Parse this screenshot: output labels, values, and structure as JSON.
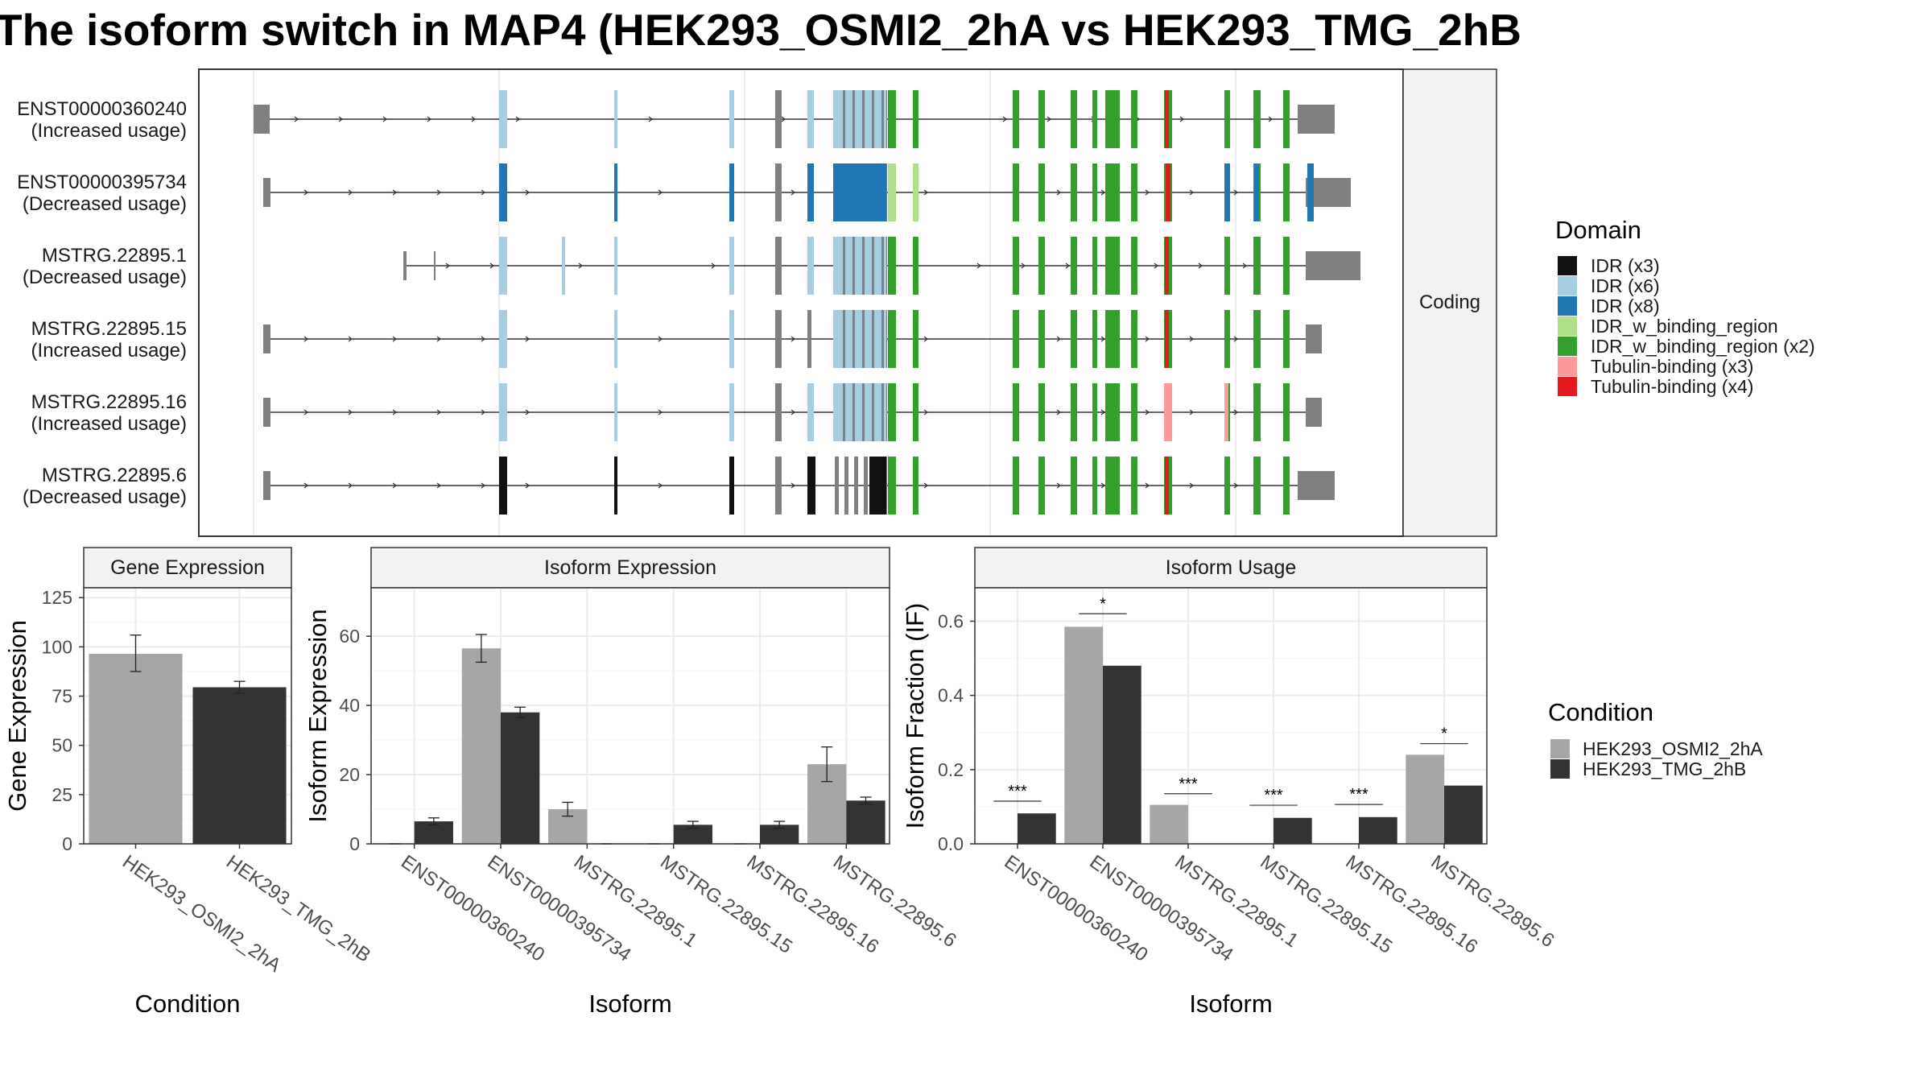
{
  "title": "The isoform switch in MAP4 (HEK293_OSMI2_2hA vs HEK293_TMG_2hB",
  "colors": {
    "cond1": "#a6a6a6",
    "cond2": "#333333",
    "intron": "#333333",
    "noncoding": "#808080",
    "facet_strip": "#f2f2f2",
    "grid": "#ebebeb"
  },
  "structure": {
    "facet_label": "Coding",
    "transcripts": [
      {
        "name": "ENST00000360240",
        "usage": "(Increased usage)"
      },
      {
        "name": "ENST00000395734",
        "usage": "(Decreased usage)"
      },
      {
        "name": "MSTRG.22895.1",
        "usage": "(Decreased usage)"
      },
      {
        "name": "MSTRG.22895.15",
        "usage": "(Increased usage)"
      },
      {
        "name": "MSTRG.22895.16",
        "usage": "(Increased usage)"
      },
      {
        "name": "MSTRG.22895.6",
        "usage": "(Decreased usage)"
      }
    ]
  },
  "domain_legend": {
    "title": "Domain",
    "items": [
      {
        "label": "IDR (x3)",
        "color": "#111111"
      },
      {
        "label": "IDR (x6)",
        "color": "#a6cee3"
      },
      {
        "label": "IDR (x8)",
        "color": "#1f78b4"
      },
      {
        "label": "IDR_w_binding_region",
        "color": "#b2df8a"
      },
      {
        "label": "IDR_w_binding_region (x2)",
        "color": "#33a02c"
      },
      {
        "label": "Tubulin-binding (x3)",
        "color": "#fb9a99"
      },
      {
        "label": "Tubulin-binding (x4)",
        "color": "#e31a1c"
      }
    ]
  },
  "condition_legend": {
    "title": "Condition",
    "items": [
      {
        "label": "HEK293_OSMI2_2hA",
        "color": "#a6a6a6"
      },
      {
        "label": "HEK293_TMG_2hB",
        "color": "#333333"
      }
    ]
  },
  "chart_data": [
    {
      "type": "bar",
      "title": "Gene Expression",
      "xlabel": "Condition",
      "ylabel": "Gene Expression",
      "categories": [
        "HEK293_OSMI2_2hA",
        "HEK293_TMG_2hB"
      ],
      "values": [
        96.5,
        79.5
      ],
      "errors": [
        [
          87.5,
          106
        ],
        [
          76.5,
          82.5
        ]
      ],
      "ylim": [
        0,
        130
      ],
      "yticks": [
        0,
        25,
        50,
        75,
        100,
        125
      ],
      "grid": true
    },
    {
      "type": "bar",
      "title": "Isoform Expression",
      "xlabel": "Isoform",
      "ylabel": "Isoform Expression",
      "categories": [
        "ENST00000360240",
        "ENST00000395734",
        "MSTRG.22895.1",
        "MSTRG.22895.15",
        "MSTRG.22895.16",
        "MSTRG.22895.6"
      ],
      "series": [
        {
          "name": "HEK293_OSMI2_2hA",
          "values": [
            0,
            56.5,
            10,
            0,
            0,
            23
          ],
          "errors": [
            [
              0,
              0
            ],
            [
              52.5,
              60.5
            ],
            [
              8,
              12
            ],
            [
              0,
              0
            ],
            [
              0,
              0
            ],
            [
              18,
              28
            ]
          ]
        },
        {
          "name": "HEK293_TMG_2hB",
          "values": [
            6.5,
            38,
            0,
            5.5,
            5.5,
            12.5
          ],
          "errors": [
            [
              5.5,
              7.5
            ],
            [
              36.5,
              39.5
            ],
            [
              0,
              0
            ],
            [
              4.5,
              6.5
            ],
            [
              4.5,
              6.5
            ],
            [
              11.5,
              13.5
            ]
          ]
        }
      ],
      "ylim": [
        0,
        74
      ],
      "yticks": [
        0,
        20,
        40,
        60
      ],
      "grid": true
    },
    {
      "type": "bar",
      "title": "Isoform Usage",
      "xlabel": "Isoform",
      "ylabel": "Isoform Fraction (IF)",
      "categories": [
        "ENST00000360240",
        "ENST00000395734",
        "MSTRG.22895.1",
        "MSTRG.22895.15",
        "MSTRG.22895.16",
        "MSTRG.22895.6"
      ],
      "series": [
        {
          "name": "HEK293_OSMI2_2hA",
          "values": [
            0,
            0.585,
            0.105,
            0,
            0,
            0.24
          ]
        },
        {
          "name": "HEK293_TMG_2hB",
          "values": [
            0.082,
            0.48,
            0,
            0.07,
            0.072,
            0.157
          ]
        }
      ],
      "significance": [
        "***",
        "*",
        "***",
        "***",
        "***",
        "*"
      ],
      "sig_y": [
        0.115,
        0.62,
        0.135,
        0.104,
        0.106,
        0.27
      ],
      "ylim": [
        0,
        0.69
      ],
      "yticks": [
        0.0,
        0.2,
        0.4,
        0.6
      ],
      "ytick_labels": [
        "0.0",
        "0.2",
        "0.4",
        "0.6"
      ],
      "grid": true
    }
  ]
}
